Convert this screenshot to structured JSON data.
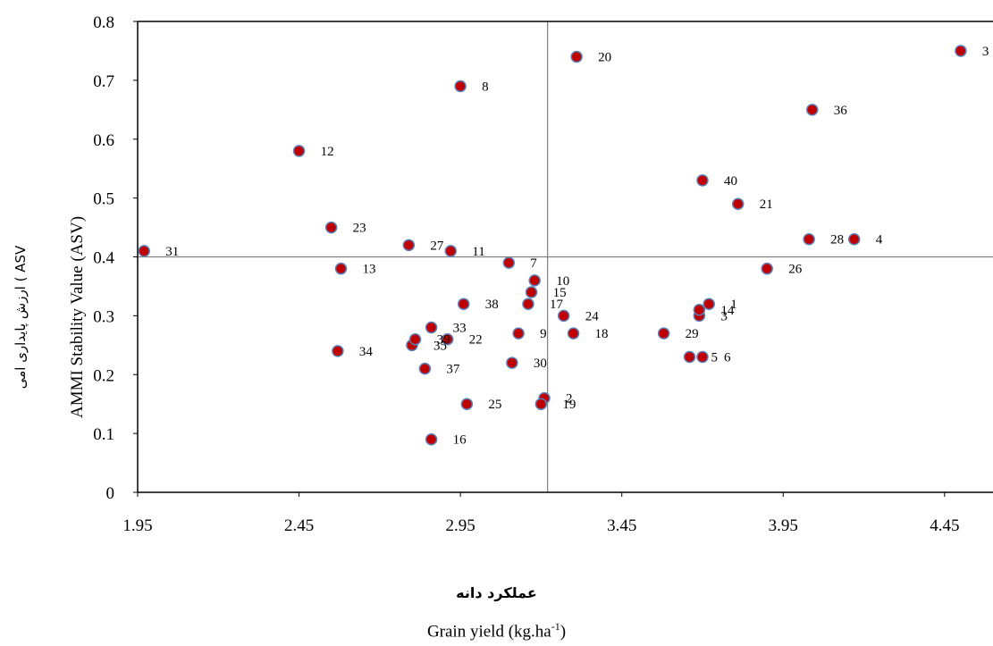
{
  "chart_data": {
    "type": "scatter",
    "xlabel_fa": "عملکرد دانه",
    "xlabel_en": "Grain yield (kg.ha",
    "xlabel_en_sup": "-1",
    "xlabel_en_end": ")",
    "ylabel_fa": "ارزش پایداری امی ( ASV",
    "ylabel_en": "AMMI Stability Value (ASV)",
    "xlim": [
      1.95,
      4.6
    ],
    "ylim": [
      0,
      0.8
    ],
    "x_ticks": [
      "1.95",
      "2.45",
      "2.95",
      "3.45",
      "3.95",
      "4.45"
    ],
    "y_ticks": [
      "0",
      "0.1",
      "0.2",
      "0.3",
      "0.4",
      "0.5",
      "0.6",
      "0.7",
      "0.8"
    ],
    "reference_lines": {
      "x": 3.22,
      "y": 0.4
    },
    "marker_color": "#c00000",
    "marker_edge_color": "#5b7fb8",
    "points": [
      {
        "label": "1",
        "x": 3.72,
        "y": 0.32
      },
      {
        "label": "2",
        "x": 3.21,
        "y": 0.16
      },
      {
        "label": "3",
        "x": 3.69,
        "y": 0.3
      },
      {
        "label": "4",
        "x": 4.17,
        "y": 0.43
      },
      {
        "label": "5",
        "x": 3.66,
        "y": 0.23
      },
      {
        "label": "6",
        "x": 3.7,
        "y": 0.23
      },
      {
        "label": "7",
        "x": 3.1,
        "y": 0.39
      },
      {
        "label": "8",
        "x": 2.95,
        "y": 0.69
      },
      {
        "label": "9",
        "x": 3.13,
        "y": 0.27
      },
      {
        "label": "10",
        "x": 3.18,
        "y": 0.36
      },
      {
        "label": "11",
        "x": 2.92,
        "y": 0.41
      },
      {
        "label": "12",
        "x": 2.45,
        "y": 0.58
      },
      {
        "label": "13",
        "x": 2.58,
        "y": 0.38
      },
      {
        "label": "14",
        "x": 3.69,
        "y": 0.31
      },
      {
        "label": "15",
        "x": 3.17,
        "y": 0.34
      },
      {
        "label": "16",
        "x": 2.86,
        "y": 0.09
      },
      {
        "label": "17",
        "x": 3.16,
        "y": 0.32
      },
      {
        "label": "18",
        "x": 3.3,
        "y": 0.27
      },
      {
        "label": "19",
        "x": 3.2,
        "y": 0.15
      },
      {
        "label": "20",
        "x": 3.31,
        "y": 0.74
      },
      {
        "label": "21",
        "x": 3.81,
        "y": 0.49
      },
      {
        "label": "22",
        "x": 2.91,
        "y": 0.26
      },
      {
        "label": "23",
        "x": 2.55,
        "y": 0.45
      },
      {
        "label": "24",
        "x": 3.27,
        "y": 0.3
      },
      {
        "label": "25",
        "x": 2.97,
        "y": 0.15
      },
      {
        "label": "26",
        "x": 3.9,
        "y": 0.38
      },
      {
        "label": "27",
        "x": 2.79,
        "y": 0.42
      },
      {
        "label": "28",
        "x": 4.03,
        "y": 0.43
      },
      {
        "label": "29",
        "x": 3.58,
        "y": 0.27
      },
      {
        "label": "30",
        "x": 3.11,
        "y": 0.22
      },
      {
        "label": "31",
        "x": 1.97,
        "y": 0.41
      },
      {
        "label": "3",
        "x": 4.5,
        "y": 0.75
      },
      {
        "label": "33",
        "x": 2.86,
        "y": 0.28
      },
      {
        "label": "34",
        "x": 2.57,
        "y": 0.24
      },
      {
        "label": "35",
        "x": 2.8,
        "y": 0.25
      },
      {
        "label": "36",
        "x": 4.04,
        "y": 0.65
      },
      {
        "label": "37",
        "x": 2.84,
        "y": 0.21
      },
      {
        "label": "38",
        "x": 2.96,
        "y": 0.32
      },
      {
        "label": "39",
        "x": 2.81,
        "y": 0.26
      },
      {
        "label": "40",
        "x": 3.7,
        "y": 0.53
      }
    ]
  }
}
